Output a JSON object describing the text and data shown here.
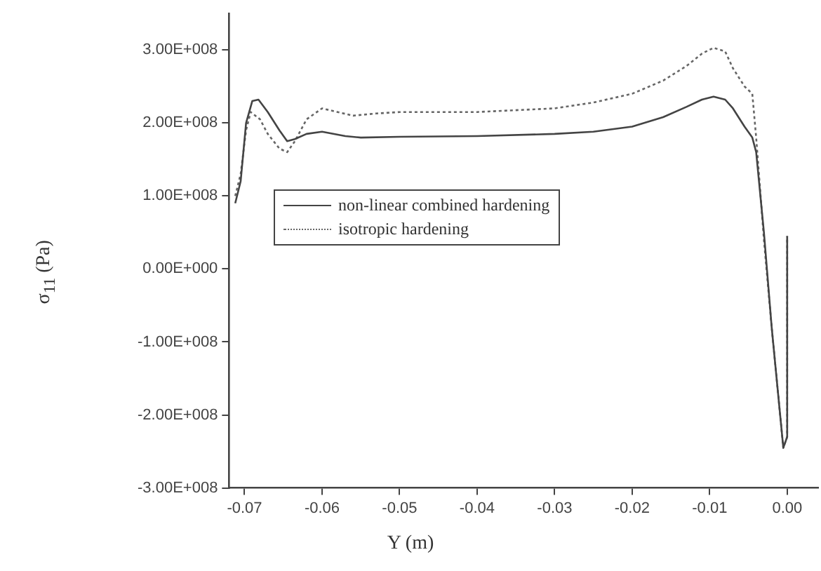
{
  "chart_data": {
    "type": "line",
    "xlabel": "Y (m)",
    "ylabel": "σ$_{11}$ (Pa)",
    "xlim": [
      -0.072,
      0.004
    ],
    "xticks": [
      -0.07,
      -0.06,
      -0.05,
      -0.04,
      -0.03,
      -0.02,
      -0.01,
      {
        "value": 0,
        "label": "0.00"
      }
    ],
    "ylim": [
      -300000000,
      350000000
    ],
    "yticks": [
      {
        "value": -300000000,
        "label": "-3.00E+008"
      },
      {
        "value": -200000000,
        "label": "-2.00E+008"
      },
      {
        "value": -100000000,
        "label": "-1.00E+008"
      },
      {
        "value": 0,
        "label": "0.00E+000"
      },
      {
        "value": 100000000,
        "label": "1.00E+008"
      },
      {
        "value": 200000000,
        "label": "2.00E+008"
      },
      {
        "value": 300000000,
        "label": "3.00E+008"
      }
    ],
    "grid": false,
    "legend": "center",
    "marker": "none",
    "series": [
      {
        "name": "non-linear combined hardening",
        "color": "#444444",
        "line_style": "solid",
        "x": [
          -0.0712,
          -0.0705,
          -0.0698,
          -0.069,
          -0.0682,
          -0.067,
          -0.0655,
          -0.0645,
          -0.0635,
          -0.062,
          -0.06,
          -0.057,
          -0.055,
          -0.05,
          -0.04,
          -0.03,
          -0.025,
          -0.02,
          -0.016,
          -0.013,
          -0.011,
          -0.0095,
          -0.008,
          -0.007,
          -0.0055,
          -0.0045,
          -0.004,
          -0.003,
          -0.002,
          -0.001,
          -0.0005,
          0.0,
          0.0
        ],
        "values": [
          90000000,
          120000000,
          200000000,
          230000000,
          232000000,
          215000000,
          190000000,
          175000000,
          178000000,
          185000000,
          188000000,
          182000000,
          180000000,
          181000000,
          182000000,
          185000000,
          188000000,
          195000000,
          208000000,
          222000000,
          232000000,
          236000000,
          232000000,
          220000000,
          195000000,
          180000000,
          160000000,
          50000000,
          -80000000,
          -190000000,
          -245000000,
          -230000000,
          45000000
        ]
      },
      {
        "name": "isotropic hardening",
        "color": "#666666",
        "line_style": "dotted",
        "x": [
          -0.0712,
          -0.0705,
          -0.0698,
          -0.0692,
          -0.068,
          -0.067,
          -0.0655,
          -0.0645,
          -0.0635,
          -0.062,
          -0.06,
          -0.058,
          -0.056,
          -0.053,
          -0.05,
          -0.04,
          -0.03,
          -0.025,
          -0.02,
          -0.016,
          -0.013,
          -0.011,
          -0.0095,
          -0.008,
          -0.007,
          -0.0055,
          -0.0045,
          -0.004,
          -0.003,
          -0.002,
          -0.001,
          -0.0005,
          0.0,
          0.0
        ],
        "values": [
          100000000,
          130000000,
          190000000,
          215000000,
          205000000,
          185000000,
          165000000,
          160000000,
          175000000,
          205000000,
          220000000,
          215000000,
          210000000,
          213000000,
          215000000,
          215000000,
          220000000,
          228000000,
          240000000,
          258000000,
          278000000,
          295000000,
          303000000,
          298000000,
          275000000,
          250000000,
          240000000,
          180000000,
          40000000,
          -80000000,
          -190000000,
          -245000000,
          -230000000,
          45000000
        ]
      }
    ]
  }
}
